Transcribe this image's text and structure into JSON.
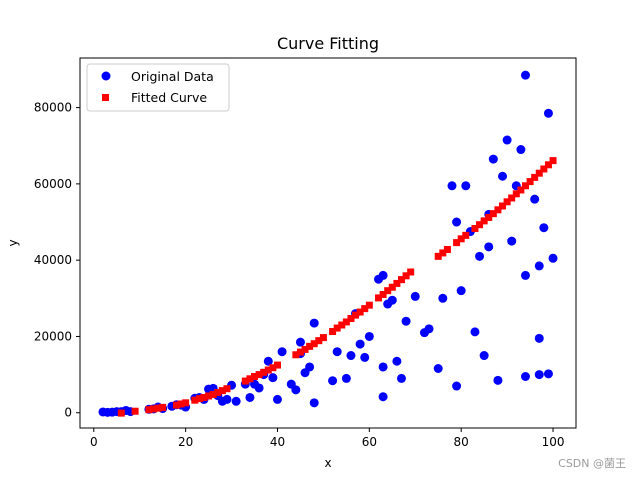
{
  "chart_data": {
    "type": "scatter",
    "title": "Curve Fitting",
    "xlabel": "x",
    "ylabel": "y",
    "xlim": [
      -3,
      105
    ],
    "ylim": [
      -4000,
      93000
    ],
    "xticks": [
      0,
      20,
      40,
      60,
      80,
      100
    ],
    "yticks": [
      0,
      20000,
      40000,
      60000,
      80000
    ],
    "ytick_labels": [
      "0",
      "20000",
      "40000",
      "60000",
      "80000"
    ],
    "grid": false,
    "legend_position": "top-left",
    "series": [
      {
        "name": "Original Data",
        "marker": "circle",
        "color": "#0000ff",
        "x": [
          2,
          3,
          4,
          5,
          6,
          7,
          8,
          12,
          13,
          14,
          15,
          17,
          18,
          19,
          20,
          22,
          23,
          24,
          25,
          26,
          27,
          28,
          29,
          30,
          31,
          33,
          34,
          35,
          36,
          37,
          38,
          39,
          40,
          41,
          43,
          44,
          45,
          45,
          46,
          47,
          48,
          48,
          52,
          53,
          55,
          56,
          57,
          58,
          59,
          60,
          62,
          63,
          63,
          63,
          64,
          65,
          66,
          67,
          68,
          70,
          72,
          73,
          75,
          76,
          78,
          79,
          79,
          80,
          81,
          82,
          83,
          84,
          85,
          86,
          86,
          87,
          88,
          89,
          90,
          91,
          92,
          93,
          94,
          94,
          94,
          96,
          97,
          97,
          97,
          98,
          99,
          99,
          100
        ],
        "y": [
          200,
          100,
          150,
          300,
          300,
          600,
          300,
          900,
          1000,
          1500,
          1100,
          1700,
          2100,
          2000,
          1500,
          3800,
          4000,
          3500,
          6200,
          6400,
          4500,
          3000,
          3500,
          7200,
          3000,
          7500,
          4000,
          7500,
          6500,
          10000,
          13500,
          9200,
          3500,
          16000,
          7500,
          6000,
          18500,
          15500,
          10500,
          12000,
          2600,
          23500,
          8400,
          16000,
          9000,
          15000,
          26000,
          18000,
          14500,
          20000,
          35000,
          4200,
          12000,
          36000,
          28500,
          29500,
          13500,
          9000,
          24000,
          30500,
          21000,
          22000,
          11600,
          30000,
          59500,
          50000,
          7000,
          32000,
          59500,
          47500,
          21200,
          41000,
          15000,
          43500,
          52000,
          66500,
          8500,
          62000,
          71500,
          45000,
          59500,
          69000,
          36000,
          88500,
          9500,
          56000,
          38500,
          19500,
          10000,
          48500,
          10200,
          78500,
          40500
        ]
      },
      {
        "name": "Fitted Curve",
        "marker": "square",
        "color": "#ff0000",
        "x": [
          6,
          9,
          12,
          13,
          14,
          15,
          18,
          19,
          20,
          22,
          23,
          24,
          25,
          26,
          27,
          28,
          29,
          33,
          34,
          35,
          36,
          37,
          38,
          39,
          40,
          44,
          45,
          46,
          47,
          48,
          49,
          50,
          52,
          53,
          54,
          55,
          56,
          57,
          58,
          59,
          60,
          62,
          63,
          64,
          65,
          66,
          67,
          68,
          69,
          75,
          76,
          77,
          79,
          80,
          81,
          83,
          84,
          85,
          86,
          87,
          88,
          89,
          90,
          91,
          92,
          93,
          94,
          95,
          96,
          97,
          98,
          99,
          100
        ],
        "y": [
          -100,
          400,
          800,
          1000,
          1200,
          1400,
          2000,
          2300,
          2600,
          3300,
          3700,
          4000,
          4400,
          4800,
          5300,
          5800,
          6300,
          8300,
          8900,
          9500,
          10000,
          10600,
          11200,
          11800,
          12500,
          15200,
          15900,
          16600,
          17400,
          18100,
          18900,
          19700,
          21300,
          22200,
          23000,
          23800,
          24700,
          25600,
          26400,
          27300,
          28200,
          30100,
          31000,
          32000,
          32900,
          33900,
          34900,
          35900,
          36900,
          41000,
          41900,
          42800,
          44600,
          45600,
          46500,
          48300,
          49300,
          50300,
          51200,
          52200,
          53200,
          54200,
          55300,
          56300,
          57400,
          58400,
          59500,
          60600,
          61700,
          62800,
          63900,
          65000,
          66100
        ]
      }
    ]
  },
  "watermark": "CSDN @菌王"
}
